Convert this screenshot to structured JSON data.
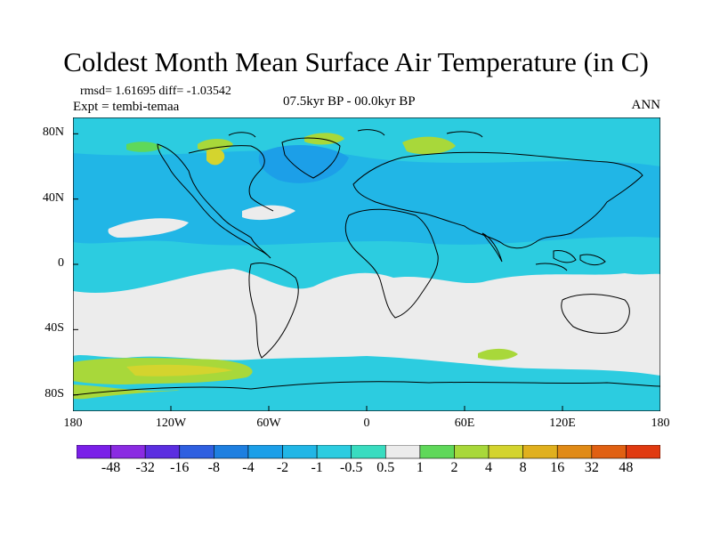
{
  "title": "Coldest Month Mean Surface Air Temperature (in C)",
  "stats": "rmsd= 1.61695 diff= -1.03542",
  "expt": "Expt = tembi-temaa",
  "period": "07.5kyr BP - 00.0kyr BP",
  "season": "ANN",
  "map_axes": {
    "lat_labels": [
      "80N",
      "40N",
      "0",
      "40S",
      "80S"
    ],
    "lat_values": [
      80,
      40,
      0,
      -40,
      -80
    ],
    "lon_labels": [
      "180",
      "120W",
      "60W",
      "0",
      "60E",
      "120E",
      "180"
    ],
    "lon_values": [
      -180,
      -120,
      -60,
      0,
      60,
      120,
      180
    ],
    "lat_range": [
      -90,
      90
    ],
    "lon_range": [
      -180,
      180
    ]
  },
  "colorbar": {
    "labels": [
      "-48",
      "-32",
      "-16",
      "-8",
      "-4",
      "-2",
      "-1",
      "-0.5",
      "0.5",
      "1",
      "2",
      "4",
      "8",
      "16",
      "32",
      "48"
    ],
    "colors": [
      "#8a2be2",
      "#5b2ee0",
      "#2f5fe0",
      "#1e7fe0",
      "#1c9fe8",
      "#21b6e6",
      "#2ccce0",
      "#39dcc0",
      "#ececec",
      "#5fd85a",
      "#a8d83a",
      "#d4d42e",
      "#e0b01e",
      "#e08a16",
      "#e06012",
      "#e03a10"
    ]
  },
  "colors": {
    "neutral": "#ececec",
    "cyan": "#2ccce0",
    "light_cyan": "#39dcc0",
    "blue": "#21b6e6",
    "deep_blue": "#1e7fe0",
    "green": "#a8d83a",
    "yellow": "#d4d42e"
  }
}
